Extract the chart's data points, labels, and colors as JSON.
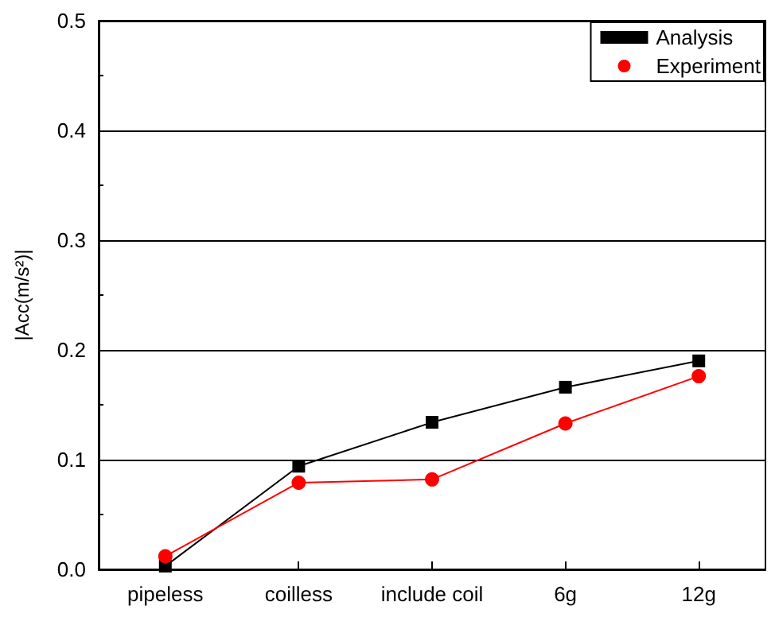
{
  "chart_data": {
    "type": "line",
    "ylabel": "|Acc(m/s²)|",
    "categories": [
      "pipeless",
      "coilless",
      "include coil",
      "6g",
      "12g"
    ],
    "series": [
      {
        "name": "Analysis",
        "color": "#000000",
        "marker": "square",
        "values": [
          0.003,
          0.094,
          0.134,
          0.166,
          0.19
        ]
      },
      {
        "name": "Experiment",
        "color": "#ff0000",
        "marker": "circle",
        "values": [
          0.012,
          0.079,
          0.082,
          0.133,
          0.176
        ]
      }
    ],
    "ylim": [
      0,
      0.5
    ],
    "yticks": [
      {
        "value": 0,
        "label": "0.0"
      },
      {
        "value": 0.1,
        "label": "0.1"
      },
      {
        "value": 0.2,
        "label": "0.2"
      },
      {
        "value": 0.3,
        "label": "0.3"
      },
      {
        "value": 0.4,
        "label": "0.4"
      },
      {
        "value": 0.5,
        "label": "0.5"
      }
    ],
    "grid": "y",
    "legend": "top right"
  }
}
